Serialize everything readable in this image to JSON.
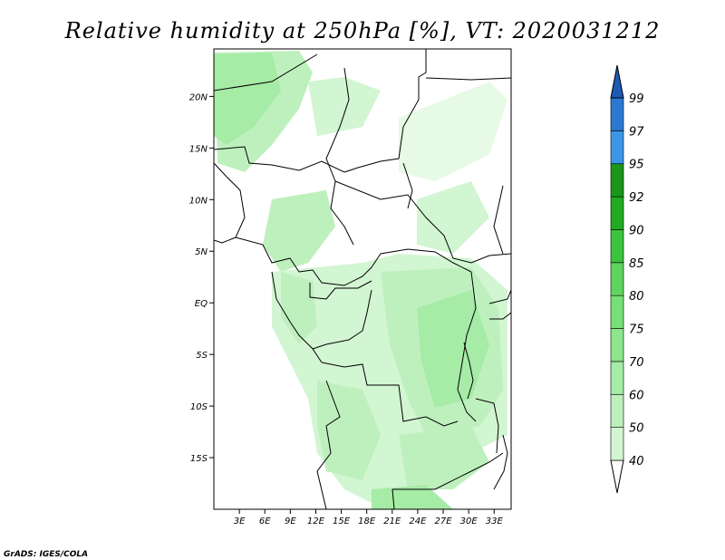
{
  "title": "Relative humidity at 250hPa [%], VT: 2020031212",
  "credit": "GrADS: IGES/COLA",
  "map": {
    "lon_range": [
      0,
      35
    ],
    "lat_range": [
      -20,
      24.6
    ],
    "lon_ticks": [
      {
        "value": 3,
        "label": "3E"
      },
      {
        "value": 6,
        "label": "6E"
      },
      {
        "value": 9,
        "label": "9E"
      },
      {
        "value": 12,
        "label": "12E"
      },
      {
        "value": 15,
        "label": "15E"
      },
      {
        "value": 18,
        "label": "18E"
      },
      {
        "value": 21,
        "label": "21E"
      },
      {
        "value": 24,
        "label": "24E"
      },
      {
        "value": 27,
        "label": "27E"
      },
      {
        "value": 30,
        "label": "30E"
      },
      {
        "value": 33,
        "label": "33E"
      }
    ],
    "lat_ticks": [
      {
        "value": 20,
        "label": "20N"
      },
      {
        "value": 15,
        "label": "15N"
      },
      {
        "value": 10,
        "label": "10N"
      },
      {
        "value": 5,
        "label": "5N"
      },
      {
        "value": 0,
        "label": "EQ"
      },
      {
        "value": -5,
        "label": "5S"
      },
      {
        "value": -10,
        "label": "10S"
      },
      {
        "value": -15,
        "label": "15S"
      }
    ]
  },
  "colorbar": {
    "labels": [
      "40",
      "50",
      "60",
      "70",
      "75",
      "80",
      "85",
      "90",
      "92",
      "95",
      "97",
      "99"
    ],
    "colors": [
      "#e6fae6",
      "#d2f5d2",
      "#bef0be",
      "#a6eba6",
      "#8de68d",
      "#78e078",
      "#5fd35f",
      "#3cc33c",
      "#22aa22",
      "#1a961a",
      "#3c96e6",
      "#2a78d2",
      "#1e5ab4"
    ]
  }
}
